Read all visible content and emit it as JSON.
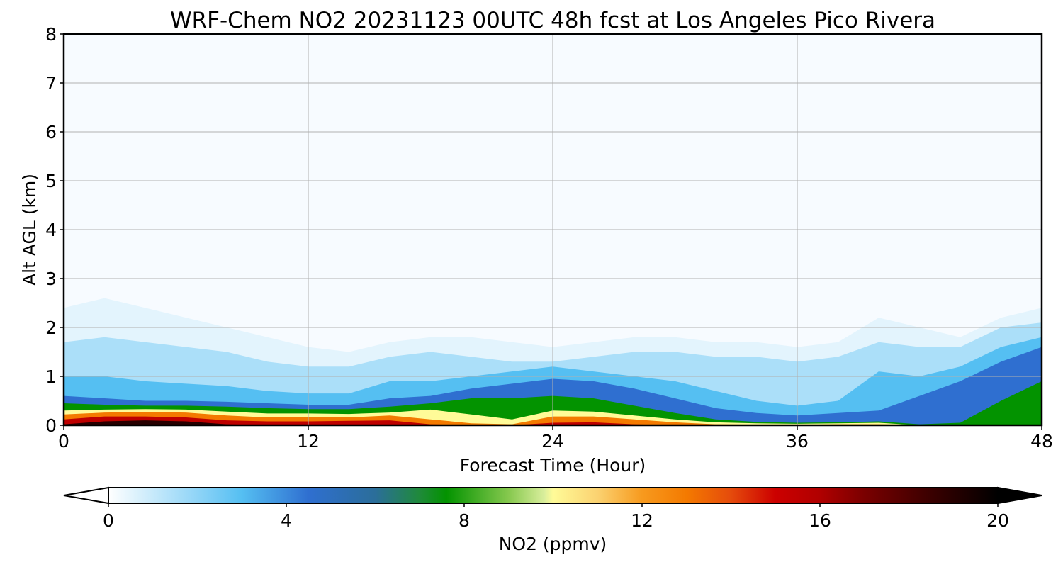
{
  "chart_data": {
    "type": "heatmap",
    "title": "WRF-Chem NO2  20231123 00UTC 48h fcst at Los Angeles Pico Rivera",
    "xlabel": "Forecast Time (Hour)",
    "ylabel": "Alt AGL (km)",
    "xlim": [
      0,
      48
    ],
    "ylim": [
      0,
      8
    ],
    "x_ticks": [
      "0",
      "12",
      "24",
      "36",
      "48"
    ],
    "x_tick_values": [
      0,
      12,
      24,
      36,
      48
    ],
    "y_ticks": [
      "0",
      "1",
      "2",
      "3",
      "4",
      "5",
      "6",
      "7",
      "8"
    ],
    "y_tick_values": [
      0,
      1,
      2,
      3,
      4,
      5,
      6,
      7,
      8
    ],
    "grid": true,
    "colorbar": {
      "label": "NO2  (ppmv)",
      "range": [
        0,
        20
      ],
      "ticks": [
        "0",
        "4",
        "8",
        "12",
        "16",
        "20"
      ],
      "tick_values": [
        0,
        4,
        8,
        12,
        16,
        20
      ],
      "extend": "both",
      "orientation": "horizontal",
      "placement": "bottom",
      "color_stops": [
        {
          "v": 0,
          "c": "#ffffff"
        },
        {
          "v": 2,
          "c": "#8fd4f7"
        },
        {
          "v": 3,
          "c": "#55bff2"
        },
        {
          "v": 4.5,
          "c": "#2f6fd0"
        },
        {
          "v": 6,
          "c": "#2b6e9a"
        },
        {
          "v": 7,
          "c": "#1f8a3a"
        },
        {
          "v": 7.6,
          "c": "#039300"
        },
        {
          "v": 9,
          "c": "#86c84e"
        },
        {
          "v": 9.8,
          "c": "#d9ee9c"
        },
        {
          "v": 10,
          "c": "#fffb98"
        },
        {
          "v": 11,
          "c": "#fbd271"
        },
        {
          "v": 12,
          "c": "#f79a1e"
        },
        {
          "v": 13,
          "c": "#f47a00"
        },
        {
          "v": 14,
          "c": "#e54b0c"
        },
        {
          "v": 15,
          "c": "#cc0000"
        },
        {
          "v": 16,
          "c": "#b00000"
        },
        {
          "v": 17,
          "c": "#7a0000"
        },
        {
          "v": 18.5,
          "c": "#3a0000"
        },
        {
          "v": 20,
          "c": "#000000"
        }
      ]
    },
    "series": [
      {
        "x": [
          0,
          2,
          4,
          6,
          8,
          10,
          12,
          14,
          16,
          18,
          20,
          22,
          24,
          26,
          28,
          30,
          32,
          34,
          36,
          38,
          40,
          42,
          44,
          46,
          48
        ],
        "level": 0.5,
        "y": [
          2.4,
          2.6,
          2.4,
          2.2,
          2.0,
          1.8,
          1.6,
          1.5,
          1.7,
          1.8,
          1.8,
          1.7,
          1.6,
          1.7,
          1.8,
          1.8,
          1.7,
          1.7,
          1.6,
          1.7,
          2.2,
          2.0,
          1.8,
          2.2,
          2.4
        ]
      },
      {
        "x": [
          0,
          2,
          4,
          6,
          8,
          10,
          12,
          14,
          16,
          18,
          20,
          22,
          24,
          26,
          28,
          30,
          32,
          34,
          36,
          38,
          40,
          42,
          44,
          46,
          48
        ],
        "level": 1.5,
        "y": [
          1.7,
          1.8,
          1.7,
          1.6,
          1.5,
          1.3,
          1.2,
          1.2,
          1.4,
          1.5,
          1.4,
          1.3,
          1.3,
          1.4,
          1.5,
          1.5,
          1.4,
          1.4,
          1.3,
          1.4,
          1.7,
          1.6,
          1.6,
          2.0,
          2.1
        ]
      },
      {
        "x": [
          0,
          2,
          4,
          6,
          8,
          10,
          12,
          14,
          16,
          18,
          20,
          22,
          24,
          26,
          28,
          30,
          32,
          34,
          36,
          38,
          40,
          42,
          44,
          46,
          48
        ],
        "level": 3,
        "y": [
          1.0,
          1.0,
          0.9,
          0.85,
          0.8,
          0.7,
          0.65,
          0.65,
          0.9,
          0.9,
          1.0,
          1.1,
          1.2,
          1.1,
          1.0,
          0.9,
          0.7,
          0.5,
          0.4,
          0.5,
          1.1,
          1.0,
          1.2,
          1.6,
          1.8
        ]
      },
      {
        "x": [
          0,
          2,
          4,
          6,
          8,
          10,
          12,
          14,
          16,
          18,
          20,
          22,
          24,
          26,
          28,
          30,
          32,
          34,
          36,
          38,
          40,
          42,
          44,
          46,
          48
        ],
        "level": 4.5,
        "y": [
          0.6,
          0.55,
          0.5,
          0.5,
          0.48,
          0.45,
          0.42,
          0.42,
          0.55,
          0.6,
          0.75,
          0.85,
          0.95,
          0.9,
          0.75,
          0.55,
          0.35,
          0.25,
          0.2,
          0.25,
          0.3,
          0.6,
          0.9,
          1.3,
          1.6
        ]
      },
      {
        "x": [
          0,
          2,
          4,
          6,
          8,
          10,
          12,
          14,
          16,
          18,
          20,
          22,
          24,
          26,
          28,
          30,
          32,
          34,
          36,
          38,
          40,
          42,
          44,
          46,
          48
        ],
        "level": 7.6,
        "y": [
          0.45,
          0.42,
          0.4,
          0.4,
          0.38,
          0.35,
          0.33,
          0.33,
          0.38,
          0.45,
          0.55,
          0.55,
          0.6,
          0.55,
          0.4,
          0.25,
          0.12,
          0.07,
          0.05,
          0.06,
          0.08,
          0.02,
          0.05,
          0.5,
          0.9
        ]
      },
      {
        "x": [
          0,
          2,
          4,
          6,
          8,
          10,
          12,
          14,
          16,
          18,
          20,
          22,
          24,
          26,
          28,
          30,
          32,
          34,
          36,
          38,
          40,
          42,
          44,
          46,
          48
        ],
        "level": 10,
        "y": [
          0.3,
          0.32,
          0.33,
          0.32,
          0.28,
          0.24,
          0.24,
          0.23,
          0.26,
          0.32,
          0.22,
          0.12,
          0.3,
          0.28,
          0.2,
          0.12,
          0.06,
          0.04,
          0.03,
          0.04,
          0.05,
          0,
          0,
          0,
          0
        ]
      },
      {
        "x": [
          0,
          2,
          4,
          6,
          8,
          10,
          12,
          14,
          16,
          18,
          20,
          22,
          24,
          26,
          28,
          30,
          32,
          34,
          36,
          38,
          40,
          42,
          44,
          46,
          48
        ],
        "level": 13,
        "y": [
          0.22,
          0.26,
          0.27,
          0.26,
          0.2,
          0.16,
          0.17,
          0.16,
          0.2,
          0.12,
          0.04,
          0.02,
          0.18,
          0.18,
          0.12,
          0.06,
          0.02,
          0.01,
          0.01,
          0.02,
          0.02,
          0,
          0,
          0,
          0
        ]
      },
      {
        "x": [
          0,
          2,
          4,
          6,
          8,
          10,
          12,
          14,
          16,
          18,
          20,
          22,
          24,
          26,
          28,
          30,
          32,
          34,
          36,
          38,
          40,
          42,
          44,
          46,
          48
        ],
        "level": 15.5,
        "y": [
          0.12,
          0.18,
          0.18,
          0.16,
          0.1,
          0.08,
          0.08,
          0.09,
          0.1,
          0.02,
          0,
          0,
          0.05,
          0.06,
          0.02,
          0,
          0,
          0,
          0,
          0,
          0,
          0,
          0,
          0,
          0
        ]
      },
      {
        "x": [
          0,
          2,
          4,
          6,
          8,
          10,
          12,
          14,
          16,
          18,
          20,
          22,
          24,
          26,
          28,
          30,
          32,
          34,
          36,
          38,
          40,
          42,
          44,
          46,
          48
        ],
        "level": 19,
        "y": [
          0.02,
          0.08,
          0.1,
          0.08,
          0.02,
          0,
          0,
          0,
          0.01,
          0,
          0,
          0,
          0,
          0,
          0,
          0,
          0,
          0,
          0,
          0,
          0,
          0,
          0,
          0,
          0
        ]
      }
    ]
  }
}
